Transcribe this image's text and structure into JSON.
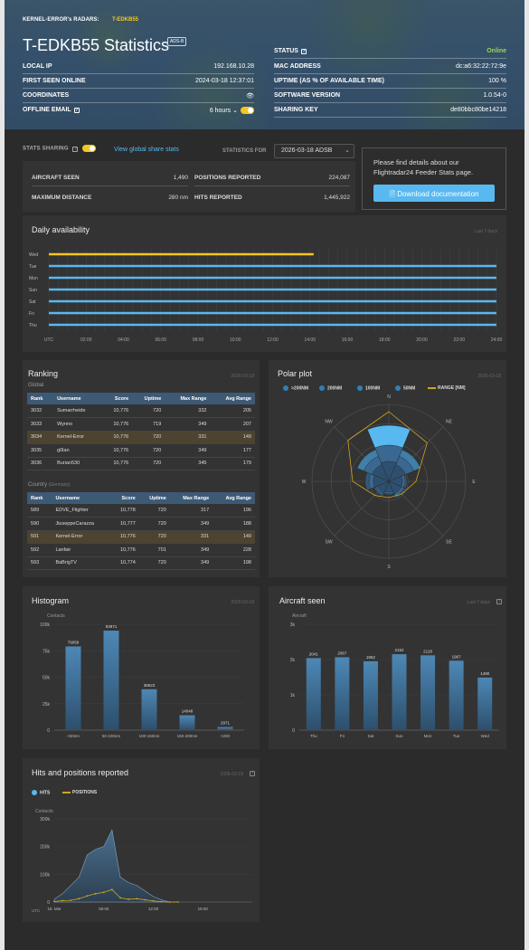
{
  "header": {
    "radars_label": "KERNEL-ERROR's RADARS:",
    "radar_reg": "T-EDKB55",
    "title": "T-EDKB55 Statistics",
    "badge": "ADS-B",
    "left_rows": [
      {
        "key": "LOCAL IP",
        "value": "192.168.10.28"
      },
      {
        "key": "FIRST SEEN ONLINE",
        "value": "2024-03-18 12:37:01"
      },
      {
        "key": "COORDINATES",
        "value": "👁"
      },
      {
        "key": "OFFLINE EMAIL",
        "value": "6 hours"
      }
    ],
    "right_rows": [
      {
        "key": "STATUS",
        "value": "Online"
      },
      {
        "key": "MAC ADDRESS",
        "value": "dc:a6:32:22:72:9e"
      },
      {
        "key": "UPTIME (AS % OF AVAILABLE TIME)",
        "value": "100 %"
      },
      {
        "key": "SOFTWARE VERSION",
        "value": "1.0.54-0"
      },
      {
        "key": "SHARING KEY",
        "value": "de80bbc80be14218"
      }
    ]
  },
  "sharing": {
    "label": "STATS SHARING",
    "link": "View global share stats",
    "stats_for": "STATISTICS FOR",
    "date": "2026-03-18 ADSB"
  },
  "summary": [
    {
      "key": "AIRCRAFT SEEN",
      "value": "1,490"
    },
    {
      "key": "POSITIONS REPORTED",
      "value": "224,087"
    },
    {
      "key": "MAXIMUM DISTANCE",
      "value": "280 nm"
    },
    {
      "key": "HITS REPORTED",
      "value": "1,445,922"
    }
  ],
  "doc": {
    "text": "Please find details about our Flightradar24 Feeder Stats page.",
    "button": "Download documentation"
  },
  "availability": {
    "title": "Daily availability",
    "meta": "Last 7 days",
    "days": [
      "Wed",
      "Tue",
      "Mon",
      "Sun",
      "Sat",
      "Fri",
      "Thu"
    ],
    "hours": [
      "UTC",
      "02:00",
      "04:00",
      "06:00",
      "08:00",
      "10:00",
      "12:00",
      "14:00",
      "16:00",
      "18:00",
      "20:00",
      "22:00",
      "24:00"
    ],
    "coverage_hours": [
      14.2,
      24,
      24,
      24,
      24,
      24,
      24
    ]
  },
  "ranking": {
    "title": "Ranking",
    "meta": "2026-03-18",
    "global_label": "Global",
    "country_label": "Country",
    "country_hint": "(Germany)",
    "columns": [
      "Rank",
      "Username",
      "Score",
      "Uptime",
      "Max Range",
      "Avg Range"
    ],
    "global_rows": [
      [
        "3032",
        "Sumarrheide",
        "10,776",
        "720",
        "332",
        "205"
      ],
      [
        "3033",
        "Wynno",
        "10,776",
        "719",
        "349",
        "207"
      ],
      [
        "3034",
        "Kernel-Error",
        "10,776",
        "720",
        "331",
        "149"
      ],
      [
        "3035",
        "g0lan",
        "10,776",
        "720",
        "349",
        "177"
      ],
      [
        "3036",
        "Burian530",
        "10,776",
        "720",
        "345",
        "179"
      ]
    ],
    "country_rows": [
      [
        "589",
        "EDVE_Flighter",
        "10,778",
        "720",
        "317",
        "196"
      ],
      [
        "590",
        "JiuseppeCarazza",
        "10,777",
        "720",
        "349",
        "188"
      ],
      [
        "591",
        "Kernel-Error",
        "10,776",
        "720",
        "331",
        "149"
      ],
      [
        "592",
        "Lanfair",
        "10,776",
        "701",
        "349",
        "228"
      ],
      [
        "593",
        "BaBrigTV",
        "10,774",
        "720",
        "349",
        "198"
      ]
    ]
  },
  "polar": {
    "title": "Polar plot",
    "meta": "2026-03-18",
    "legend": [
      ">200NM",
      "200NM",
      "100NM",
      "50NM",
      "RANGE [NM]"
    ],
    "directions": [
      "N",
      "NE",
      "E",
      "SE",
      "S",
      "SW",
      "W",
      "NW"
    ]
  },
  "chart_data": [
    {
      "type": "bar",
      "title": "Histogram",
      "meta": "2026-03-18",
      "ylabel": "Contacts",
      "categories": [
        "<50nm",
        "50-100nm",
        "100-150nm",
        "150-200nm",
        ">200"
      ],
      "values": [
        79059,
        93971,
        38623,
        14048,
        2971
      ],
      "value_labels": [
        "79059",
        "93971",
        "38623",
        "14048",
        "2971"
      ],
      "ylim": [
        0,
        100000
      ],
      "yticks": [
        "0",
        "25k",
        "50k",
        "75k",
        "100k"
      ]
    },
    {
      "type": "bar",
      "title": "Aircraft seen",
      "meta": "Last 7 days",
      "ylabel": "Aircraft",
      "categories": [
        "Thu",
        "Fri",
        "Sat",
        "Sun",
        "Mon",
        "Tue",
        "Wed"
      ],
      "values": [
        2041,
        2067,
        1952,
        2152,
        2120,
        1967,
        1490
      ],
      "ylim": [
        0,
        3000
      ],
      "yticks": [
        "0",
        "1k",
        "2k",
        "3k"
      ]
    },
    {
      "type": "area",
      "title": "Hits and positions reported",
      "meta": "2026-03-18",
      "ylabel": "Contacts",
      "xlabel": "UTC",
      "x_ticks": [
        "18. Mar",
        "06:00",
        "12:00",
        "18:00"
      ],
      "yticks": [
        "0",
        "100k",
        "200k",
        "300k"
      ],
      "ylim": [
        0,
        300000
      ],
      "x_hours": [
        0,
        1,
        2,
        3,
        4,
        5,
        6,
        7,
        8,
        9,
        10,
        11,
        12,
        13,
        14,
        15
      ],
      "series": [
        {
          "name": "HITS",
          "values": [
            10000,
            30000,
            60000,
            90000,
            170000,
            190000,
            200000,
            260000,
            90000,
            70000,
            60000,
            40000,
            20000,
            8000,
            0,
            0
          ]
        },
        {
          "name": "POSITIONS",
          "values": [
            2000,
            5000,
            6000,
            12000,
            22000,
            30000,
            35000,
            45000,
            15000,
            10000,
            12000,
            8000,
            4000,
            1000,
            0,
            0
          ]
        }
      ]
    }
  ]
}
